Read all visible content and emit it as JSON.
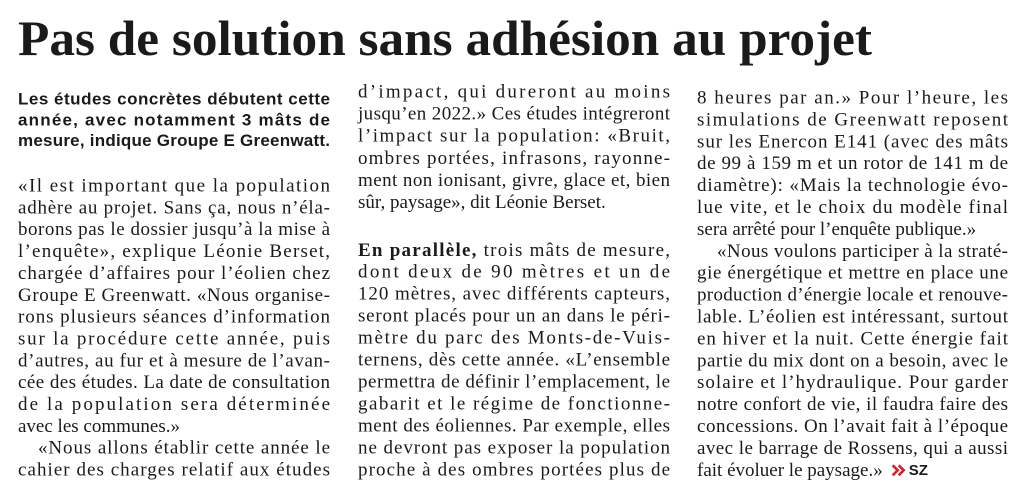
{
  "title": "Pas de solution sans adhésion au projet",
  "columns": [
    {
      "paragraphs": [
        {
          "style": "lead",
          "lines": [
            "Les études concrètes débutent cette",
            "année, avec notamment 3 mâts de",
            "mesure, indique Groupe E Greenwatt."
          ]
        },
        {
          "lines": [
            "«Il est important que la population",
            "adhère au projet. Sans ça, nous n’éla-",
            "borons pas le dossier jusqu’à la mise à",
            "l’enquête», explique Léonie Berset,",
            "chargée d’affaires pour l’éolien chez",
            "Groupe E Greenwatt. «Nous organise-",
            "rons plusieurs séances d’information",
            "sur la procédure cette année, puis",
            "d’autres, au fur et à mesure de l’avan-",
            "cée des études. La date de consultation",
            "de la population sera déterminée",
            "avec les communes.»"
          ]
        },
        {
          "lines": [
            "«Nous allons établir cette année le",
            "cahier des charges relatif aux études"
          ]
        }
      ]
    },
    {
      "paragraphs": [
        {
          "lines": [
            "d’impact, qui dureront au moins",
            "jusqu’en 2022.» Ces études intégreront",
            "l’impact sur la population: «Bruit,",
            "ombres portées, infrasons, rayonne-",
            "ment non ionisant, givre, glace et, bien",
            "sûr, paysage», dit Léonie Berset."
          ]
        },
        {
          "lines": [
            {
              "lead": "En parallèle,",
              "text": " trois mâts de mesure,"
            },
            "dont deux de 90 mètres et un de",
            "120 mètres, avec différents capteurs,",
            "seront placés pour un an dans le péri-",
            "mètre du parc des Monts-de-Vuis-",
            "ternens, dès cette année. «L’ensemble",
            "permettra de définir l’emplacement, le",
            "gabarit et le régime de fonctionne-",
            "ment des éoliennes. Par exemple, elles",
            "ne devront pas exposer la population",
            "proche à des ombres portées plus de"
          ]
        }
      ]
    },
    {
      "paragraphs": [
        {
          "lines": [
            "8 heures par an.» Pour l’heure, les",
            "simulations de Greenwatt reposent",
            "sur les Enercon E141 (avec des mâts",
            "de 99 à 159 m et un rotor de 141 m de",
            "diamètre): «Mais la technologie évo-",
            "lue vite, et le choix du modèle final",
            "sera arrêté pour l’enquête publique.»"
          ]
        },
        {
          "lines": [
            "«Nous voulons participer à la straté-",
            "gie énergétique et mettre en place une",
            "production d’énergie locale et renouve-",
            "lable. L’éolien est intéressant, surtout",
            "en hiver et la nuit. Cette énergie fait",
            "partie du mix dont on a besoin, avec le",
            "solaire et l’hydraulique. Pour garder",
            "notre confort de vie, il faudra faire des",
            "concessions. On l’avait fait à l’époque",
            "avec le barrage de Rossens, qui a aussi",
            "fait évoluer le paysage.»"
          ]
        }
      ]
    }
  ],
  "signature": "SZ"
}
